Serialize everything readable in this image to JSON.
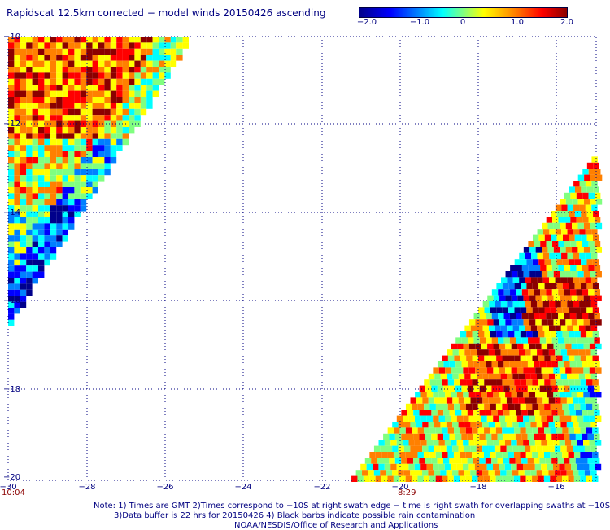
{
  "title": "Rapidscat 12.5km corrected − model winds 20150426 ascending",
  "colorbar": {
    "labels": [
      "−2.0",
      "−1.0",
      "0",
      "1.0",
      "2.0"
    ],
    "colors": [
      "#00008b",
      "#0000ff",
      "#0080ff",
      "#00ffff",
      "#80ff80",
      "#ffff00",
      "#ff8000",
      "#ff0000",
      "#8b0000"
    ],
    "range": [
      -2.0,
      2.0
    ]
  },
  "map": {
    "lon_ticks": [
      "−30",
      "−28",
      "−26",
      "−24",
      "−22",
      "−20",
      "−18",
      "−16"
    ],
    "lat_ticks": [
      "−10",
      "−12",
      "−14",
      "−16",
      "−18",
      "−20"
    ],
    "lon_range": [
      -30,
      -14.6
    ],
    "lat_range": [
      -20,
      -10
    ],
    "grid": "dotted",
    "swath_times": [
      "10:04",
      "8:29"
    ]
  },
  "notes": {
    "line1": "Note: 1) Times are GMT 2)Times correspond to −10S at right swath edge − time is right swath for overlapping swaths at −10S",
    "line2": "3)Data buffer is 22 hrs for 20150426 4) Black barbs indicate possible rain contamination",
    "line3": "NOAA/NESDIS/Office of Research and Applications"
  }
}
